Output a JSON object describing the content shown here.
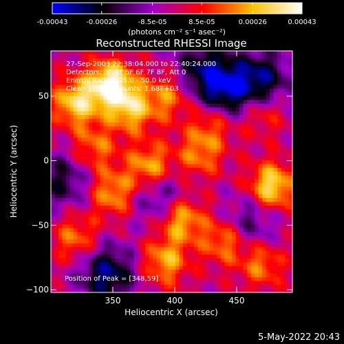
{
  "chart_data": {
    "type": "heatmap",
    "title": "Reconstructed RHESSI Image",
    "xlabel": "Heliocentric X (arcsec)",
    "ylabel": "Heliocentric Y (arcsec)",
    "xlim": [
      300,
      495
    ],
    "ylim": [
      -102,
      85
    ],
    "x_ticks": [
      350,
      400,
      450
    ],
    "y_ticks": [
      50,
      0,
      -50,
      -100
    ],
    "colorbar": {
      "ticks": [
        "-0.00043",
        "-0.00026",
        "-8.5e-05",
        "8.5e-05",
        "0.00026",
        "0.00043"
      ],
      "tick_values": [
        -0.00043,
        -0.00026,
        -8.5e-05,
        8.5e-05,
        0.00026,
        0.00043
      ],
      "range": [
        -0.00043,
        0.00043
      ],
      "unit_label": "(photons cm⁻² s⁻¹ asec⁻²)",
      "stops": [
        "#0000ff",
        "#000000",
        "#9b00c8",
        "#ff0000",
        "#ffc000",
        "#ffffff"
      ]
    },
    "annotations": [
      "27-Sep-2003 22:38:04.000 to 22:40:24.000",
      "Detectors: 3F 4F 5F 6F 7F 8F, Att 0",
      "Energy Range: 25.0 - 50.0 keV",
      "Clean 100 iter counts: 1.68E+03",
      "Position of Peak = [348,59]"
    ],
    "bright_sources": [
      {
        "x": 348,
        "y": 59,
        "v": 1.0
      },
      {
        "x": 320,
        "y": 45,
        "v": 0.78
      },
      {
        "x": 365,
        "y": 40,
        "v": 0.68
      },
      {
        "x": 395,
        "y": 50,
        "v": 0.52
      },
      {
        "x": 430,
        "y": 30,
        "v": 0.45
      },
      {
        "x": 470,
        "y": 38,
        "v": 0.42
      },
      {
        "x": 335,
        "y": 10,
        "v": 0.48
      },
      {
        "x": 380,
        "y": -5,
        "v": 0.7
      },
      {
        "x": 420,
        "y": 5,
        "v": 0.5
      },
      {
        "x": 478,
        "y": -20,
        "v": 0.85
      },
      {
        "x": 350,
        "y": -25,
        "v": 0.6
      },
      {
        "x": 405,
        "y": -45,
        "v": 0.72
      },
      {
        "x": 320,
        "y": -60,
        "v": 0.5
      },
      {
        "x": 440,
        "y": -62,
        "v": 0.58
      },
      {
        "x": 392,
        "y": -78,
        "v": 0.62
      },
      {
        "x": 470,
        "y": -80,
        "v": 0.5
      }
    ],
    "dim_regions": [
      {
        "x": 440,
        "y": 55,
        "v": -0.8
      },
      {
        "x": 470,
        "y": 62,
        "v": -0.7
      },
      {
        "x": 345,
        "y": -88,
        "v": -0.75
      },
      {
        "x": 388,
        "y": -28,
        "v": -0.5
      },
      {
        "x": 310,
        "y": -15,
        "v": -0.5
      },
      {
        "x": 460,
        "y": -48,
        "v": -0.45
      },
      {
        "x": 420,
        "y": 72,
        "v": -0.5
      }
    ]
  },
  "footer_date": "5-May-2022 20:43"
}
